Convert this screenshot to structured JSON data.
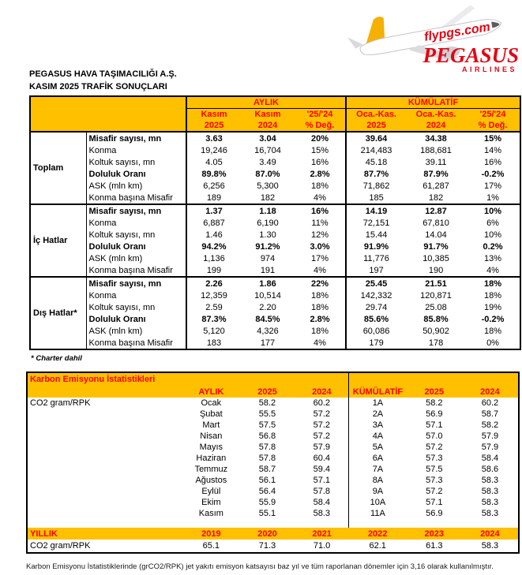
{
  "header": {
    "company": "PEGASUS HAVA TAŞIMACILIĞI A.Ş.",
    "title": "KASIM 2025 TRAFİK SONUÇLARI",
    "logo": {
      "brand": "PEGASUS",
      "sub": "AIRLINES",
      "fuselage_text": "flypgs.com",
      "brand_color": "#e30613",
      "tail_color": "#F5B000"
    }
  },
  "colors": {
    "header_gold": "#FFC000",
    "header_red": "#FF0000"
  },
  "traffic_table": {
    "columns": {
      "aylik": "AYLIK",
      "kumulatif": "KÜMÜLATİF",
      "c1l1": "Kasım",
      "c1l2": "2025",
      "c2l1": "Kasım",
      "c2l2": "2024",
      "c3l1": "'25/'24",
      "c3l2": "% Değ.",
      "c4l1": "Oca.-Kas.",
      "c4l2": "2025",
      "c5l1": "Oca.-Kas.",
      "c5l2": "2024",
      "c6l1": "'25/'24",
      "c6l2": "% Değ."
    },
    "sections": [
      {
        "label": "Toplam",
        "rows": [
          {
            "metric": "Misafir sayısı, mn",
            "bold": true,
            "values": [
              "3.63",
              "3.04",
              "20%",
              "39.64",
              "34.38",
              "15%"
            ]
          },
          {
            "metric": "Konma",
            "bold": false,
            "values": [
              "19,246",
              "16,704",
              "15%",
              "214,483",
              "188,681",
              "14%"
            ]
          },
          {
            "metric": "Koltuk sayısı, mn",
            "bold": false,
            "values": [
              "4.05",
              "3.49",
              "16%",
              "45.18",
              "39.11",
              "16%"
            ]
          },
          {
            "metric": "Doluluk Oranı",
            "bold": true,
            "values": [
              "89.8%",
              "87.0%",
              "2.8%",
              "87.7%",
              "87.9%",
              "-0.2%"
            ]
          },
          {
            "metric": "ASK (mln km)",
            "bold": false,
            "values": [
              "6,256",
              "5,300",
              "18%",
              "71,862",
              "61,287",
              "17%"
            ]
          },
          {
            "metric": "Konma başına Misafir",
            "bold": false,
            "values": [
              "189",
              "182",
              "4%",
              "185",
              "182",
              "1%"
            ]
          }
        ]
      },
      {
        "label": "İç Hatlar",
        "rows": [
          {
            "metric": "Misafir sayısı, mn",
            "bold": true,
            "values": [
              "1.37",
              "1.18",
              "16%",
              "14.19",
              "12.87",
              "10%"
            ]
          },
          {
            "metric": "Konma",
            "bold": false,
            "values": [
              "6,887",
              "6,190",
              "11%",
              "72,151",
              "67,810",
              "6%"
            ]
          },
          {
            "metric": "Koltuk sayısı, mn",
            "bold": false,
            "values": [
              "1.46",
              "1.30",
              "12%",
              "15.44",
              "14.04",
              "10%"
            ]
          },
          {
            "metric": "Doluluk Oranı",
            "bold": true,
            "values": [
              "94.2%",
              "91.2%",
              "3.0%",
              "91.9%",
              "91.7%",
              "0.2%"
            ]
          },
          {
            "metric": "ASK (mln km)",
            "bold": false,
            "values": [
              "1,136",
              "974",
              "17%",
              "11,776",
              "10,385",
              "13%"
            ]
          },
          {
            "metric": "Konma başına Misafir",
            "bold": false,
            "values": [
              "199",
              "191",
              "4%",
              "197",
              "190",
              "4%"
            ]
          }
        ]
      },
      {
        "label": "Dış Hatlar*",
        "rows": [
          {
            "metric": "Misafir sayısı, mn",
            "bold": true,
            "values": [
              "2.26",
              "1.86",
              "22%",
              "25.45",
              "21.51",
              "18%"
            ]
          },
          {
            "metric": "Konma",
            "bold": false,
            "values": [
              "12,359",
              "10,514",
              "18%",
              "142,332",
              "120,871",
              "18%"
            ]
          },
          {
            "metric": "Koltuk sayısı, mn",
            "bold": false,
            "values": [
              "2.59",
              "2.20",
              "18%",
              "29.74",
              "25.08",
              "19%"
            ]
          },
          {
            "metric": "Doluluk Oranı",
            "bold": true,
            "values": [
              "87.3%",
              "84.5%",
              "2.8%",
              "85.6%",
              "85.8%",
              "-0.2%"
            ]
          },
          {
            "metric": "ASK (mln km)",
            "bold": false,
            "values": [
              "5,120",
              "4,326",
              "18%",
              "60,086",
              "50,902",
              "18%"
            ]
          },
          {
            "metric": "Konma başına Misafir",
            "bold": false,
            "values": [
              "183",
              "177",
              "4%",
              "179",
              "178",
              "0%"
            ]
          }
        ]
      }
    ],
    "footnote": "* Charter dahil"
  },
  "carbon_table": {
    "title": "Karbon Emisyonu İstatistikleri",
    "row_label": "CO2 gram/RPK",
    "columns": {
      "aylik": "AYLIK",
      "m2025": "2025",
      "m2024": "2024",
      "kumulatif": "KÜMÜLATİF",
      "c2025": "2025",
      "c2024": "2024"
    },
    "monthly_rows": [
      {
        "month": "Ocak",
        "m2025": "58.2",
        "m2024": "60.2",
        "cum": "1A",
        "c2025": "58.2",
        "c2024": "60.2"
      },
      {
        "month": "Şubat",
        "m2025": "55.5",
        "m2024": "57.2",
        "cum": "2A",
        "c2025": "56.9",
        "c2024": "58.7"
      },
      {
        "month": "Mart",
        "m2025": "57.5",
        "m2024": "57.2",
        "cum": "3A",
        "c2025": "57.1",
        "c2024": "58.2"
      },
      {
        "month": "Nisan",
        "m2025": "56.8",
        "m2024": "57.2",
        "cum": "4A",
        "c2025": "57.0",
        "c2024": "57.9"
      },
      {
        "month": "Mayıs",
        "m2025": "57.8",
        "m2024": "57.9",
        "cum": "5A",
        "c2025": "57.2",
        "c2024": "57.9"
      },
      {
        "month": "Haziran",
        "m2025": "57.8",
        "m2024": "60.4",
        "cum": "6A",
        "c2025": "57.3",
        "c2024": "58.4"
      },
      {
        "month": "Temmuz",
        "m2025": "58.7",
        "m2024": "59.4",
        "cum": "7A",
        "c2025": "57.5",
        "c2024": "58.6"
      },
      {
        "month": "Ağustos",
        "m2025": "56.1",
        "m2024": "57.1",
        "cum": "8A",
        "c2025": "57.3",
        "c2024": "58.3"
      },
      {
        "month": "Eylül",
        "m2025": "56.4",
        "m2024": "57.8",
        "cum": "9A",
        "c2025": "57.2",
        "c2024": "58.3"
      },
      {
        "month": "Ekim",
        "m2025": "55.9",
        "m2024": "58.4",
        "cum": "10A",
        "c2025": "57.1",
        "c2024": "58.3"
      },
      {
        "month": "Kasım",
        "m2025": "55.1",
        "m2024": "58.3",
        "cum": "11A",
        "c2025": "56.9",
        "c2024": "58.3"
      }
    ],
    "yearly": {
      "label": "YILLIK",
      "row_label": "CO2 gram/RPK",
      "years": [
        "2019",
        "2020",
        "2021",
        "2022",
        "2023",
        "2024"
      ],
      "values": [
        "65.1",
        "71.3",
        "71.0",
        "62.1",
        "61.3",
        "58.3"
      ]
    },
    "footnote": "Karbon Emisyonu İstatistiklerinde (grCO2/RPK) jet yakıtı emisyon katsayısı baz yıl ve tüm raporlanan dönemler için 3,16 olarak kullanılmıştır."
  }
}
